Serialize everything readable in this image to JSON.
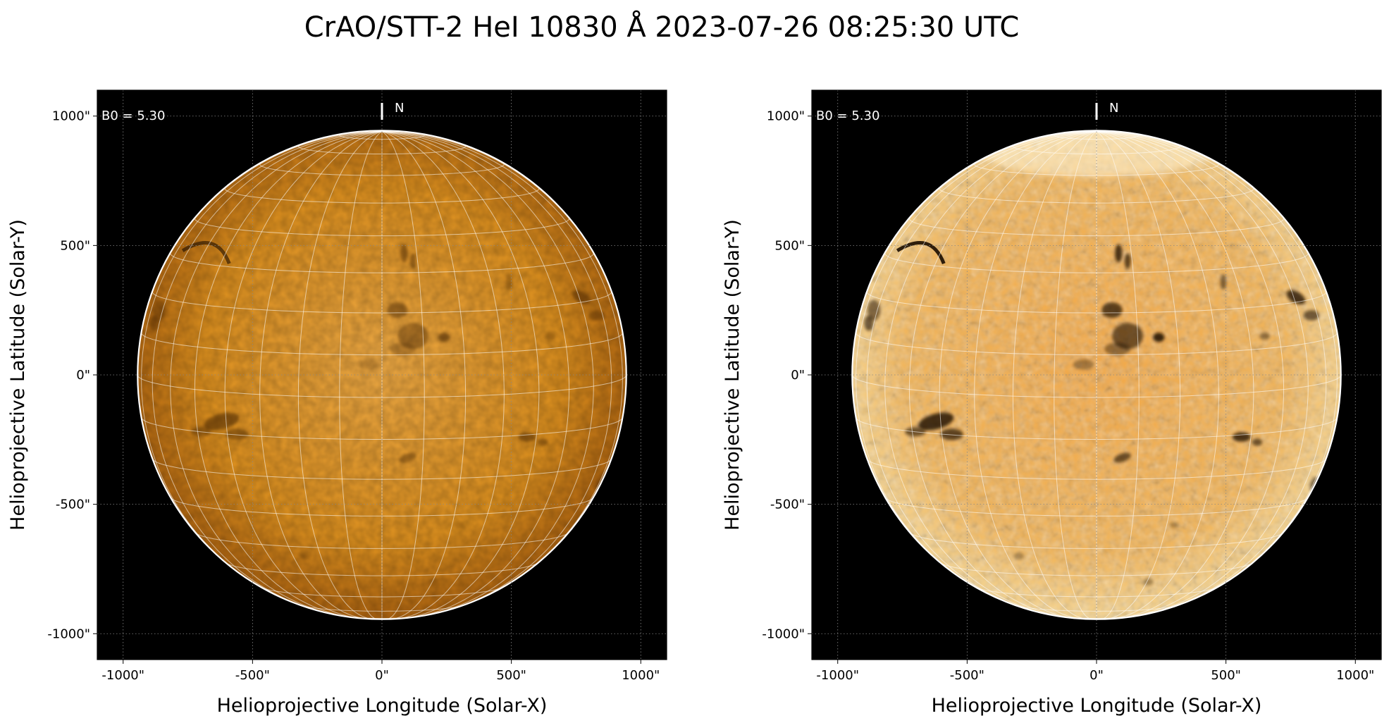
{
  "figure": {
    "title": "CrAO/STT-2 HeI 10830 Å 2023-07-26 08:25:30 UTC"
  },
  "colors": {
    "background": "#000000",
    "disk_center": "#f0a63c",
    "disk_edge": "#b96c10",
    "grid_line": "#ffffff",
    "limb": "#ffffff"
  },
  "panels": [
    {
      "id": "left",
      "xlabel": "Helioprojective Longitude (Solar-X)",
      "ylabel": "Helioprojective Latitude (Solar-Y)",
      "xticks": [
        "-1000\"",
        "-500\"",
        "0\"",
        "500\"",
        "1000\""
      ],
      "yticks": [
        "1000\"",
        "500\"",
        "0\"",
        "-500\"",
        "-1000\""
      ],
      "b0_label": "B0 = 5.30",
      "north_label": "N",
      "variant": "original"
    },
    {
      "id": "right",
      "xlabel": "Helioprojective Longitude (Solar-X)",
      "ylabel": "Helioprojective Latitude (Solar-Y)",
      "xticks": [
        "-1000\"",
        "-500\"",
        "0\"",
        "500\"",
        "1000\""
      ],
      "yticks": [
        "1000\"",
        "500\"",
        "0\"",
        "-500\"",
        "-1000\""
      ],
      "b0_label": "B0 = 5.30",
      "north_label": "N",
      "variant": "enhanced"
    }
  ],
  "solar_disk": {
    "radius_arcsec": 944,
    "axis_range_arcsec": [
      -1100,
      1100
    ],
    "tick_values_arcsec": [
      -1000,
      -500,
      0,
      500,
      1000
    ],
    "meridian_step_deg": 10,
    "parallel_step_deg": 10,
    "b0_deg": 5.3
  }
}
